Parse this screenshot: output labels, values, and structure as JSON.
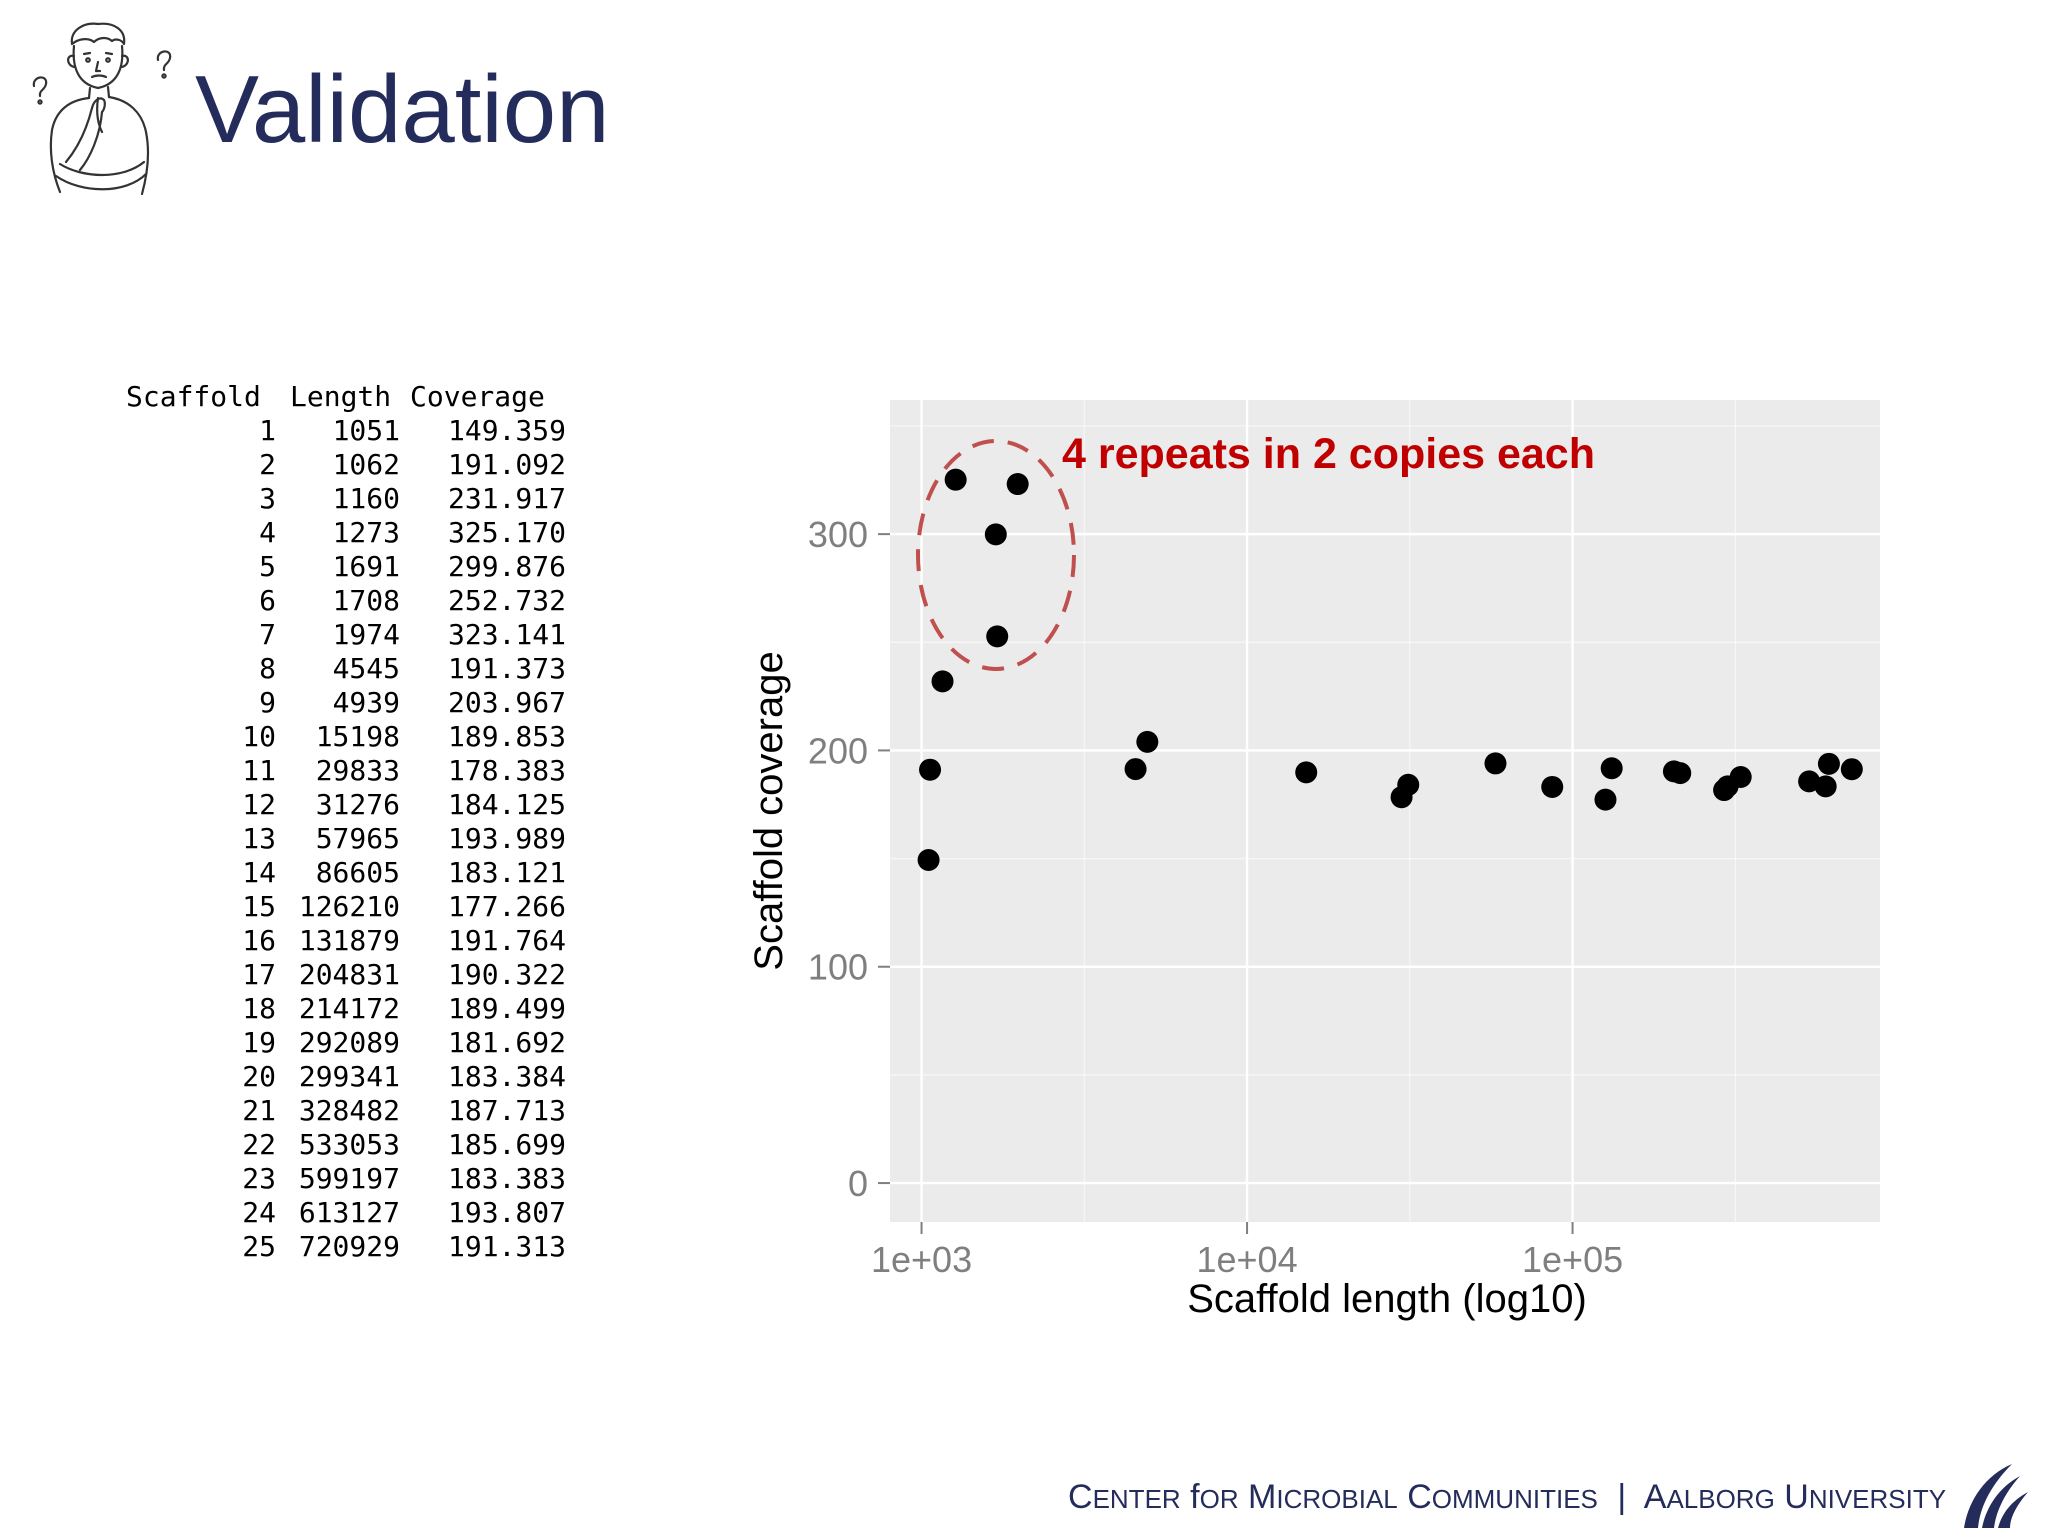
{
  "slide": {
    "title": "Validation"
  },
  "table": {
    "headers": [
      "Scaffold",
      "Length",
      "Coverage"
    ],
    "rows": [
      [
        "1",
        "1051",
        "149.359"
      ],
      [
        "2",
        "1062",
        "191.092"
      ],
      [
        "3",
        "1160",
        "231.917"
      ],
      [
        "4",
        "1273",
        "325.170"
      ],
      [
        "5",
        "1691",
        "299.876"
      ],
      [
        "6",
        "1708",
        "252.732"
      ],
      [
        "7",
        "1974",
        "323.141"
      ],
      [
        "8",
        "4545",
        "191.373"
      ],
      [
        "9",
        "4939",
        "203.967"
      ],
      [
        "10",
        "15198",
        "189.853"
      ],
      [
        "11",
        "29833",
        "178.383"
      ],
      [
        "12",
        "31276",
        "184.125"
      ],
      [
        "13",
        "57965",
        "193.989"
      ],
      [
        "14",
        "86605",
        "183.121"
      ],
      [
        "15",
        "126210",
        "177.266"
      ],
      [
        "16",
        "131879",
        "191.764"
      ],
      [
        "17",
        "204831",
        "190.322"
      ],
      [
        "18",
        "214172",
        "189.499"
      ],
      [
        "19",
        "292089",
        "181.692"
      ],
      [
        "20",
        "299341",
        "183.384"
      ],
      [
        "21",
        "328482",
        "187.713"
      ],
      [
        "22",
        "533053",
        "185.699"
      ],
      [
        "23",
        "599197",
        "183.383"
      ],
      [
        "24",
        "613127",
        "193.807"
      ],
      [
        "25",
        "720929",
        "191.313"
      ]
    ]
  },
  "chart_data": {
    "type": "scatter",
    "xlabel": "Scaffold length (log10)",
    "ylabel": "Scaffold coverage",
    "xscale": "log10",
    "xlim": [
      800,
      880000
    ],
    "ylim": [
      -18,
      362
    ],
    "xticks": [
      1000,
      10000,
      100000
    ],
    "xtick_labels": [
      "1e+03",
      "1e+04",
      "1e+05"
    ],
    "yticks": [
      0,
      100,
      200,
      300
    ],
    "ytick_labels": [
      "0",
      "100",
      "200",
      "300"
    ],
    "grid": true,
    "x": [
      1051,
      1062,
      1160,
      1273,
      1691,
      1708,
      1974,
      4545,
      4939,
      15198,
      29833,
      31276,
      57965,
      86605,
      126210,
      131879,
      204831,
      214172,
      292089,
      299341,
      328482,
      533053,
      599197,
      613127,
      720929
    ],
    "y": [
      149.359,
      191.092,
      231.917,
      325.17,
      299.876,
      252.732,
      323.141,
      191.373,
      203.967,
      189.853,
      178.383,
      184.125,
      193.989,
      183.121,
      177.266,
      191.764,
      190.322,
      189.499,
      181.692,
      183.384,
      187.713,
      185.699,
      183.383,
      193.807,
      191.313
    ],
    "annotation": {
      "text": "4 repeats in 2 copies each",
      "color": "#c00000"
    },
    "colors": {
      "panel": "#ebebeb",
      "grid": "#ffffff",
      "point": "#000000",
      "tick_text": "#7f7f7f"
    }
  },
  "footer": {
    "center": "Center for Microbial Communities",
    "separator": "|",
    "university": "Aalborg University"
  },
  "icons": {
    "illustration": "thinking-person-icon",
    "logo": "aalborg-university-logo-icon"
  }
}
